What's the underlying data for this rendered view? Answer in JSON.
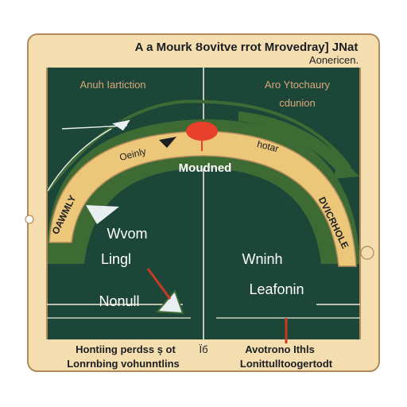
{
  "title": {
    "line1": "A a Mourk Ȣovitve rrot Mrovedray] JNat",
    "line2": "Aonericen."
  },
  "panel": {
    "top_left": "Anuh Iartiction",
    "top_right_1": "Aro Ytochaury",
    "top_right_2": "cdunion"
  },
  "arc": {
    "peak_label": "Moudned",
    "band_left_top": "Oeinly",
    "band_right_top": "hotar",
    "band_left_side": "OAWMLY",
    "band_right_side": "DVICRHOLE"
  },
  "inner": {
    "left_1": "Wvom",
    "left_2": "Lingl",
    "left_3": "Nonull",
    "right_1": "Wninh",
    "right_2": "Leafonin"
  },
  "footer": {
    "left_1": "Hontiing perdss ș ot",
    "left_2": "Lonrnbing vohunntlins",
    "center": "Ïб",
    "right_1": "Avotrono Ithls",
    "right_2": "Lonittulltoogertodt"
  },
  "colors": {
    "board": "#1c4638",
    "frame": "#f4deb0",
    "border": "#b08a5a",
    "band": "#ecc77a",
    "arc_green": "#3e6b34",
    "peak": "#e8402a",
    "label_tan": "#d9a87a",
    "text_dark": "#1b1e22",
    "line": "#f1e7d4",
    "arrow_red": "#c93a22"
  }
}
